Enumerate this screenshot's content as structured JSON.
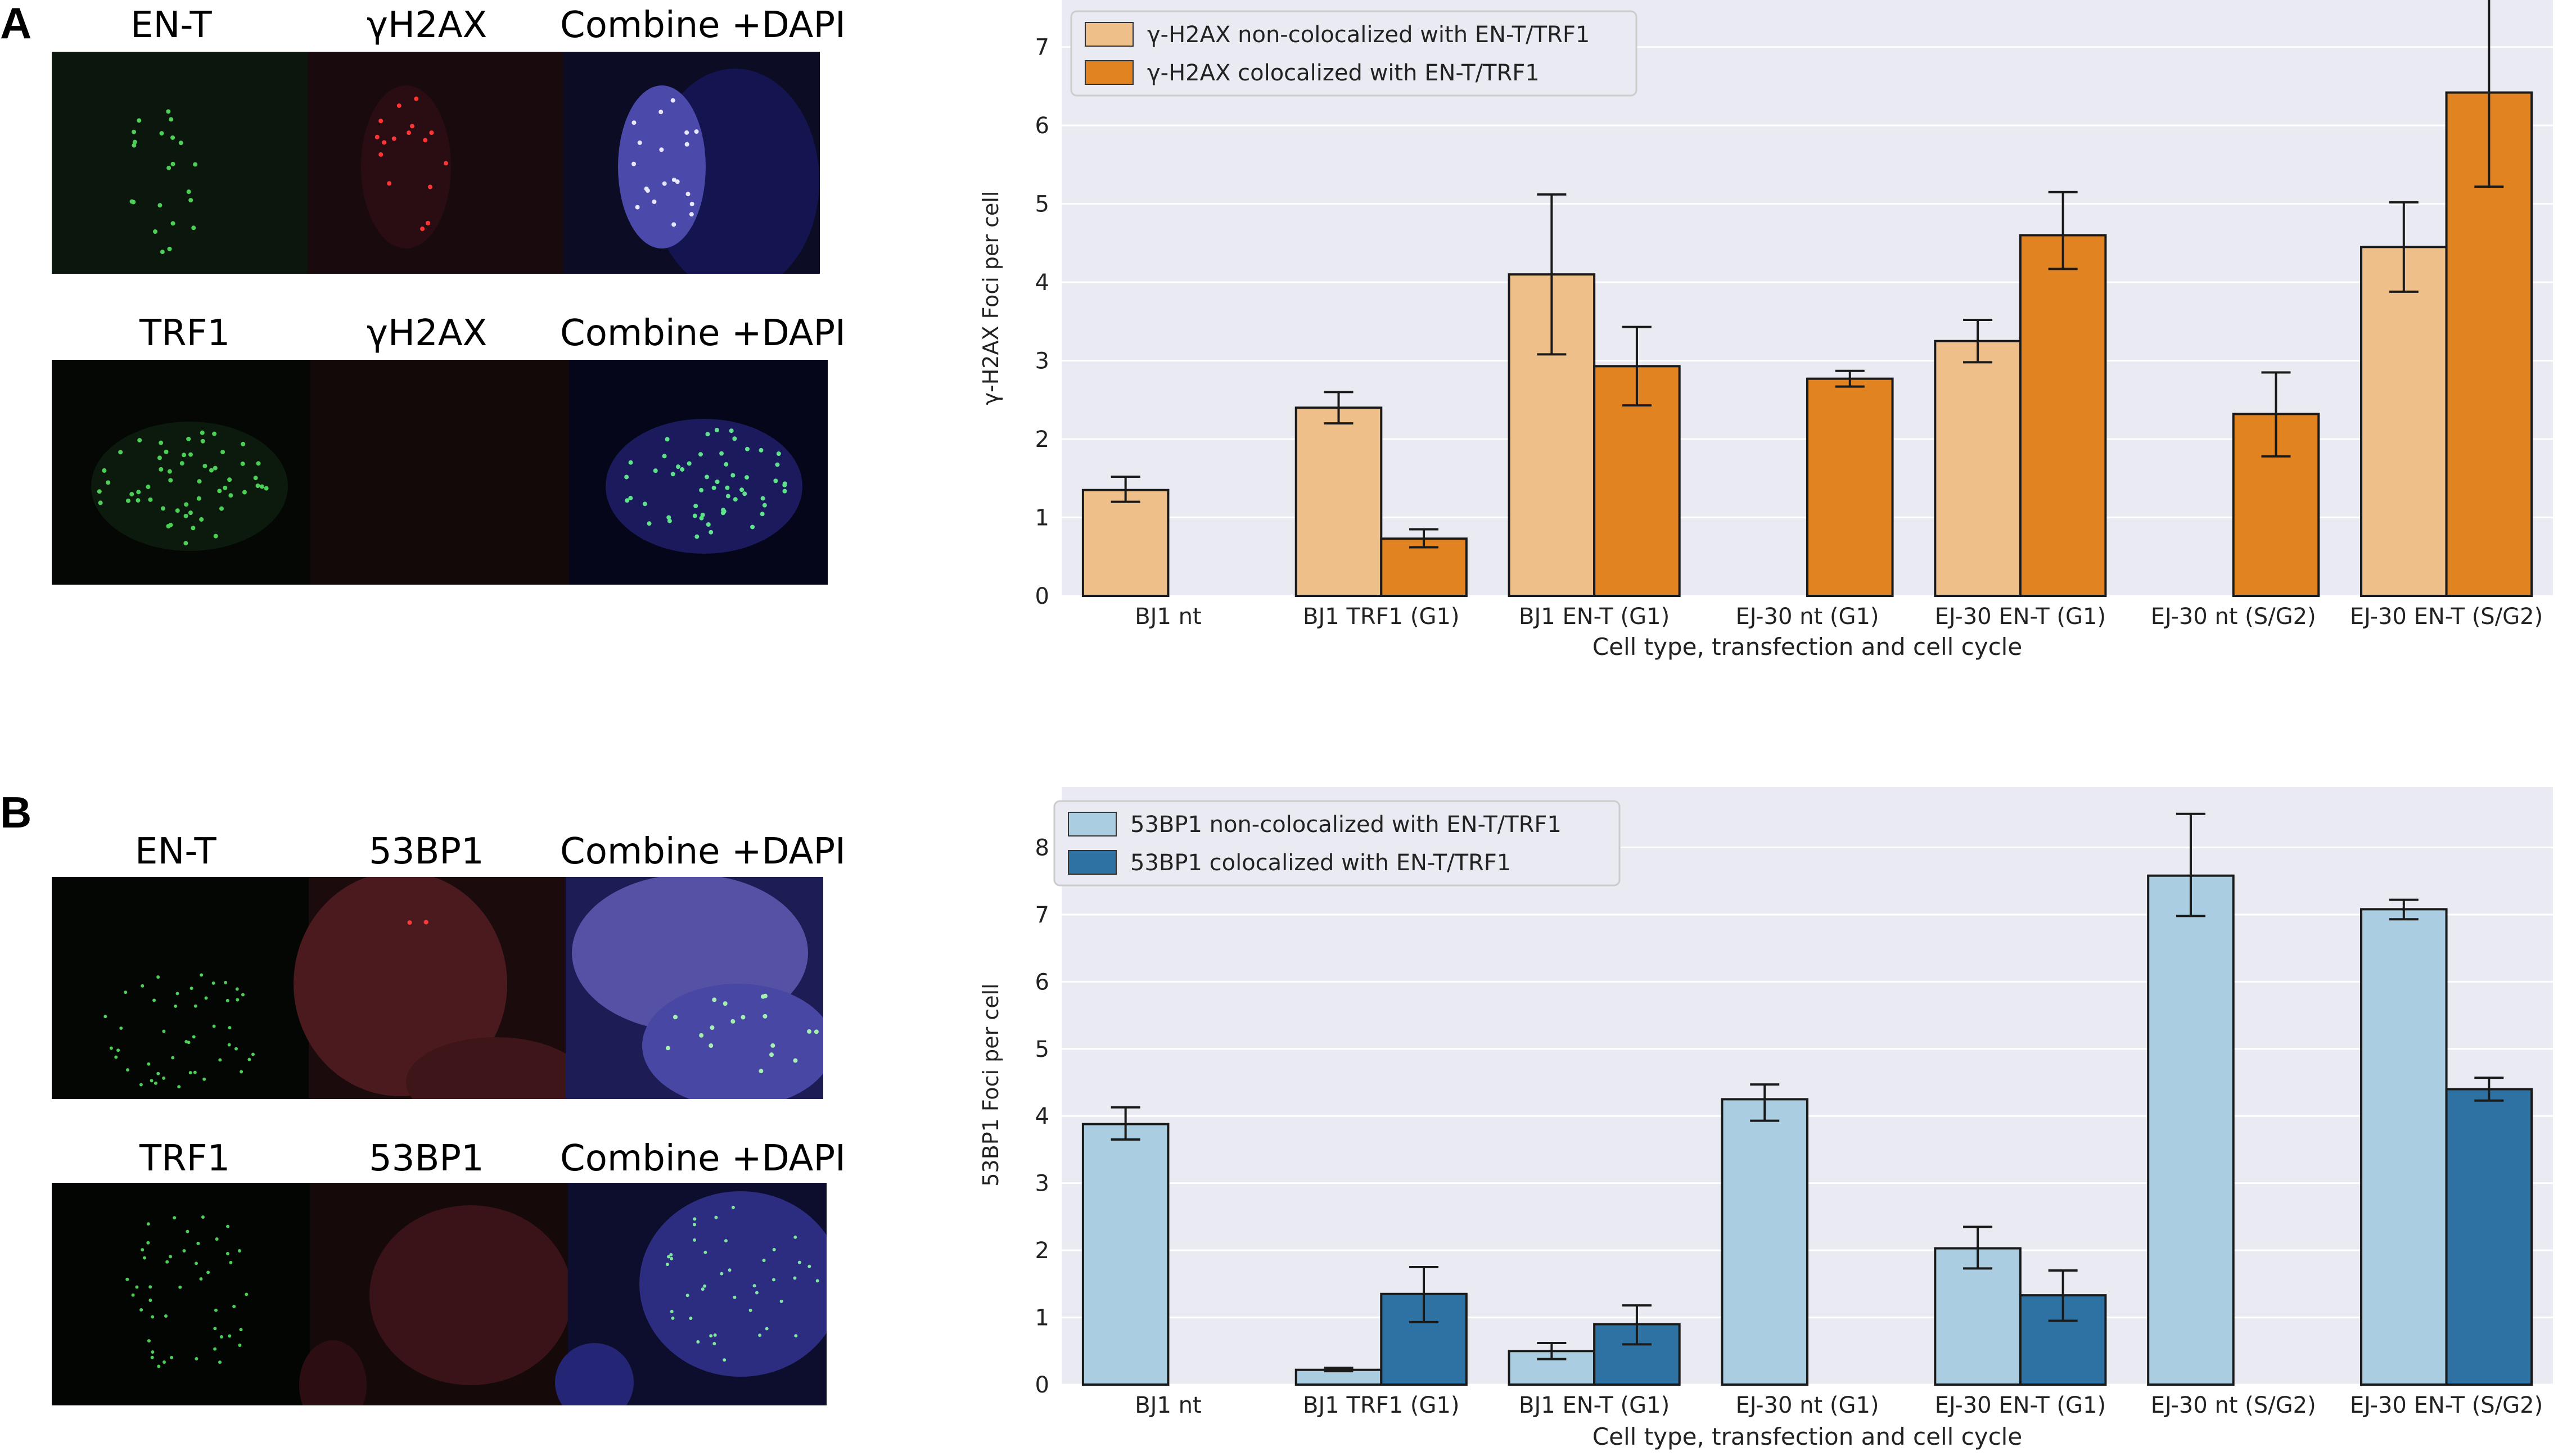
{
  "panels": {
    "a": {
      "letter": "A",
      "row1": [
        "EN-T",
        "γH2AX",
        "Combine +DAPI"
      ],
      "row2": [
        "TRF1",
        "γH2AX",
        "Combine +DAPI"
      ]
    },
    "b": {
      "letter": "B",
      "row1": [
        "EN-T",
        "53BP1",
        "Combine +DAPI"
      ],
      "row2": [
        "TRF1",
        "53BP1",
        "Combine +DAPI"
      ]
    }
  },
  "chart_data": [
    {
      "type": "bar",
      "title": "",
      "xlabel": "Cell type, transfection and cell cycle",
      "ylabel": "γ-H2AX Foci per cell",
      "ylim": [
        0,
        7.6
      ],
      "yticks": [
        0,
        1,
        2,
        3,
        4,
        5,
        6,
        7
      ],
      "grid": true,
      "legend": "top-left",
      "categories": [
        "BJ1 nt",
        "BJ1 TRF1 (G1)",
        "BJ1 EN-T (G1)",
        "EJ-30 nt (G1)",
        "EJ-30 EN-T (G1)",
        "EJ-30 nt (S/G2)",
        "EJ-30 EN-T (S/G2)"
      ],
      "series": [
        {
          "name": "γ-H2AX non-colocalized with EN-T/TRF1",
          "color": "#eebf88",
          "values": [
            1.35,
            2.4,
            4.1,
            0,
            3.25,
            0,
            4.45
          ],
          "err_low": [
            1.2,
            2.2,
            3.08,
            0,
            2.98,
            0,
            3.88
          ],
          "err_high": [
            1.52,
            2.6,
            5.12,
            0,
            3.52,
            0,
            5.02
          ]
        },
        {
          "name": "γ-H2AX colocalized with EN-T/TRF1",
          "color": "#e08320",
          "values": [
            0,
            0.73,
            2.93,
            2.77,
            4.6,
            2.32,
            6.42
          ],
          "err_low": [
            0,
            0.62,
            2.43,
            2.67,
            4.17,
            1.78,
            5.22
          ],
          "err_high": [
            0,
            0.85,
            3.43,
            2.87,
            5.15,
            2.85,
            7.62
          ]
        }
      ]
    },
    {
      "type": "bar",
      "title": "",
      "xlabel": "Cell type, transfection and cell cycle",
      "ylabel": "53BP1 Foci per cell",
      "ylim": [
        0,
        8.9
      ],
      "yticks": [
        0,
        1,
        2,
        3,
        4,
        5,
        6,
        7,
        8
      ],
      "grid": true,
      "legend": "top-left",
      "categories": [
        "BJ1 nt",
        "BJ1 TRF1 (G1)",
        "BJ1 EN-T (G1)",
        "EJ-30 nt (G1)",
        "EJ-30 EN-T (G1)",
        "EJ-30 nt (S/G2)",
        "EJ-30 EN-T (S/G2)"
      ],
      "series": [
        {
          "name": "53BP1 non-colocalized with EN-T/TRF1",
          "color": "#abcde1",
          "values": [
            3.88,
            0.22,
            0.5,
            4.25,
            2.03,
            7.58,
            7.08
          ],
          "err_low": [
            3.65,
            0.2,
            0.38,
            3.93,
            1.73,
            6.98,
            6.93
          ],
          "err_high": [
            4.13,
            0.25,
            0.62,
            4.47,
            2.35,
            8.5,
            7.22
          ]
        },
        {
          "name": "53BP1 colocalized with EN-T/TRF1",
          "color": "#2e72a3",
          "values": [
            0,
            1.35,
            0.9,
            0,
            1.33,
            0,
            4.4
          ],
          "err_low": [
            0,
            0.93,
            0.6,
            0,
            0.95,
            0,
            4.23
          ],
          "err_high": [
            0,
            1.75,
            1.18,
            0,
            1.7,
            0,
            4.57
          ]
        }
      ]
    }
  ]
}
